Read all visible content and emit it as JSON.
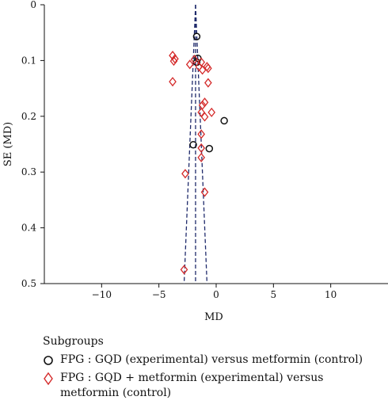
{
  "chart_data": {
    "type": "scatter",
    "title": "",
    "xlabel": "MD",
    "ylabel": "SE (MD)",
    "xlim": [
      -15,
      15
    ],
    "ylim": [
      0,
      0.5
    ],
    "y_inverted": true,
    "xticks": [
      -10,
      -5,
      0,
      5,
      10
    ],
    "yticks": [
      0,
      0.1,
      0.2,
      0.3,
      0.4,
      0.5
    ],
    "grid": false,
    "legend_position": "bottom",
    "legend_title": "Subgroups",
    "series": [
      {
        "name": "FPG : GQD (experimental) versus metformin (control)",
        "marker": "circle",
        "color": "#111111",
        "points": [
          {
            "x": -1.7,
            "y": 0.057
          },
          {
            "x": -1.6,
            "y": 0.096
          },
          {
            "x": -1.7,
            "y": 0.103
          },
          {
            "x": 0.7,
            "y": 0.208
          },
          {
            "x": -2.0,
            "y": 0.251
          },
          {
            "x": -0.6,
            "y": 0.258
          }
        ]
      },
      {
        "name": "FPG : GQD + metformin (experimental) versus metformin (control)",
        "marker": "diamond",
        "color": "#d42a2a",
        "points": [
          {
            "x": -3.8,
            "y": 0.091
          },
          {
            "x": -3.6,
            "y": 0.097
          },
          {
            "x": -3.7,
            "y": 0.101
          },
          {
            "x": -1.9,
            "y": 0.098
          },
          {
            "x": -2.3,
            "y": 0.107
          },
          {
            "x": -1.3,
            "y": 0.103
          },
          {
            "x": -1.5,
            "y": 0.111
          },
          {
            "x": -0.8,
            "y": 0.111
          },
          {
            "x": -0.7,
            "y": 0.114
          },
          {
            "x": -1.2,
            "y": 0.117
          },
          {
            "x": -3.8,
            "y": 0.138
          },
          {
            "x": -0.7,
            "y": 0.14
          },
          {
            "x": -1.0,
            "y": 0.175
          },
          {
            "x": -1.2,
            "y": 0.18
          },
          {
            "x": -1.3,
            "y": 0.193
          },
          {
            "x": -0.4,
            "y": 0.193
          },
          {
            "x": -1.0,
            "y": 0.201
          },
          {
            "x": -1.3,
            "y": 0.232
          },
          {
            "x": -1.3,
            "y": 0.257
          },
          {
            "x": -1.3,
            "y": 0.274
          },
          {
            "x": -2.7,
            "y": 0.303
          },
          {
            "x": -1.0,
            "y": 0.336
          },
          {
            "x": -2.8,
            "y": 0.475
          }
        ]
      }
    ],
    "funnel": {
      "center": -1.8,
      "left_bottom_x": -2.8,
      "right_bottom_x": -0.8,
      "apex_y": 0
    }
  }
}
